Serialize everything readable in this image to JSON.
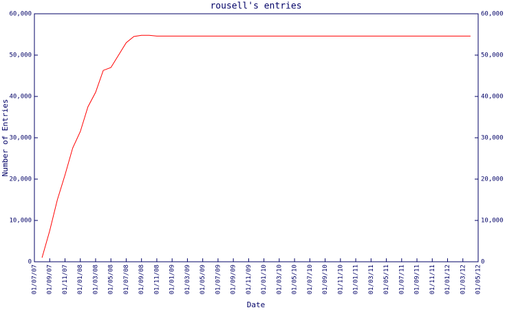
{
  "chart_data": {
    "type": "line",
    "title": "rousell's entries",
    "y_label": "Number of Entries",
    "x_label": "Date",
    "x": [
      "01/08/07",
      "01/09/07",
      "01/10/07",
      "01/11/07",
      "01/12/07",
      "01/01/08",
      "01/02/08",
      "01/03/08",
      "01/04/08",
      "01/05/08",
      "01/06/08",
      "01/07/08",
      "01/08/08",
      "01/09/08",
      "01/10/08",
      "01/11/08",
      "01/12/08",
      "01/01/09",
      "01/02/09",
      "01/03/09",
      "01/04/09",
      "01/05/09",
      "01/06/09",
      "01/07/09",
      "01/08/09",
      "01/09/09",
      "01/10/09",
      "01/11/09",
      "01/12/09",
      "01/01/10",
      "01/02/10",
      "01/03/10",
      "01/04/10",
      "01/05/10",
      "01/06/10",
      "01/07/10",
      "01/08/10",
      "01/09/10",
      "01/10/10",
      "01/11/10",
      "01/12/10",
      "01/01/11",
      "01/02/11",
      "01/03/11",
      "01/04/11",
      "01/05/11",
      "01/06/11",
      "01/07/11",
      "01/08/11",
      "01/09/11",
      "01/10/11",
      "01/11/11",
      "01/12/11",
      "01/01/12",
      "01/02/12",
      "01/03/12",
      "01/04/12"
    ],
    "values": [
      1000,
      7500,
      15000,
      21000,
      27500,
      31500,
      37500,
      41000,
      46300,
      47000,
      50000,
      53000,
      54500,
      54800,
      54800,
      54600,
      54600,
      54600,
      54600,
      54600,
      54600,
      54600,
      54600,
      54600,
      54600,
      54600,
      54600,
      54600,
      54600,
      54600,
      54600,
      54600,
      54600,
      54600,
      54600,
      54600,
      54600,
      54600,
      54600,
      54600,
      54600,
      54600,
      54600,
      54600,
      54600,
      54600,
      54600,
      54600,
      54600,
      54600,
      54600,
      54600,
      54600,
      54600,
      54600,
      54600,
      54600
    ],
    "color": "#ff0000",
    "xlim": [
      "01/07/07",
      "01/05/12"
    ],
    "xticks": [
      "01/07/07",
      "01/09/07",
      "01/11/07",
      "01/01/08",
      "01/03/08",
      "01/05/08",
      "01/07/08",
      "01/09/08",
      "01/11/08",
      "01/01/09",
      "01/03/09",
      "01/05/09",
      "01/07/09",
      "01/09/09",
      "01/11/09",
      "01/01/10",
      "01/03/10",
      "01/05/10",
      "01/07/10",
      "01/09/10",
      "01/11/10",
      "01/01/11",
      "01/03/11",
      "01/05/11",
      "01/07/11",
      "01/09/11",
      "01/11/11",
      "01/01/12",
      "01/03/12",
      "01/05/12"
    ],
    "ylim": [
      0,
      60000
    ],
    "yticks": [
      0,
      {
        "value": 10000,
        "label": "10,000"
      },
      {
        "value": 20000,
        "label": "20,000"
      },
      {
        "value": 30000,
        "label": "30,000"
      },
      {
        "value": 40000,
        "label": "40,000"
      },
      {
        "value": 50000,
        "label": "50,000"
      },
      {
        "value": 60000,
        "label": "60,000"
      }
    ],
    "y2lim": [
      0,
      60000
    ],
    "y2ticks": [
      0,
      {
        "value": 10000,
        "label": "10,000"
      },
      {
        "value": 20000,
        "label": "20,000"
      },
      {
        "value": 30000,
        "label": "30,000"
      },
      {
        "value": 40000,
        "label": "40,000"
      },
      {
        "value": 50000,
        "label": "50,000"
      },
      {
        "value": 60000,
        "label": "60,000"
      }
    ],
    "grid": false
  }
}
